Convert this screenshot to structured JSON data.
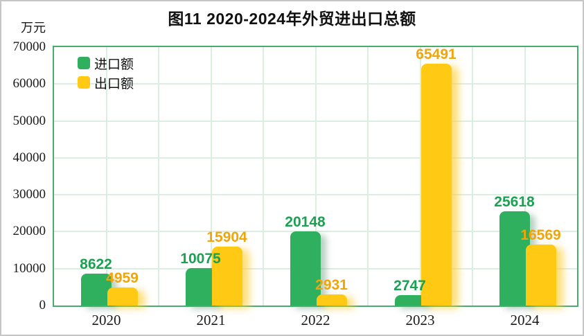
{
  "figure": {
    "title": "图11 2020-2024年外贸进出口总额",
    "unit_label": "万元"
  },
  "chart_data": {
    "type": "bar",
    "title": "图11 2020-2024年外贸进出口总额",
    "ylabel": "万元",
    "xlabel": "",
    "categories": [
      "2020",
      "2021",
      "2022",
      "2023",
      "2024"
    ],
    "series": [
      {
        "name": "进口额",
        "values": [
          8622,
          10075,
          20148,
          2747,
          25618
        ],
        "color": "#2fb05f",
        "label_color": "#1ba152"
      },
      {
        "name": "出口额",
        "values": [
          4959,
          15904,
          2931,
          65491,
          16569
        ],
        "color": "#ffc914",
        "label_color": "#f0a50a"
      }
    ],
    "ylim": [
      0,
      70000
    ],
    "yticks": [
      0,
      10000,
      20000,
      30000,
      40000,
      50000,
      60000,
      70000
    ],
    "grid": true,
    "legend_position": "top-left",
    "colors": {
      "plot_border": "#45ae6c",
      "gridline": "#dceee2",
      "outer_border": "#c6c6c6"
    }
  }
}
